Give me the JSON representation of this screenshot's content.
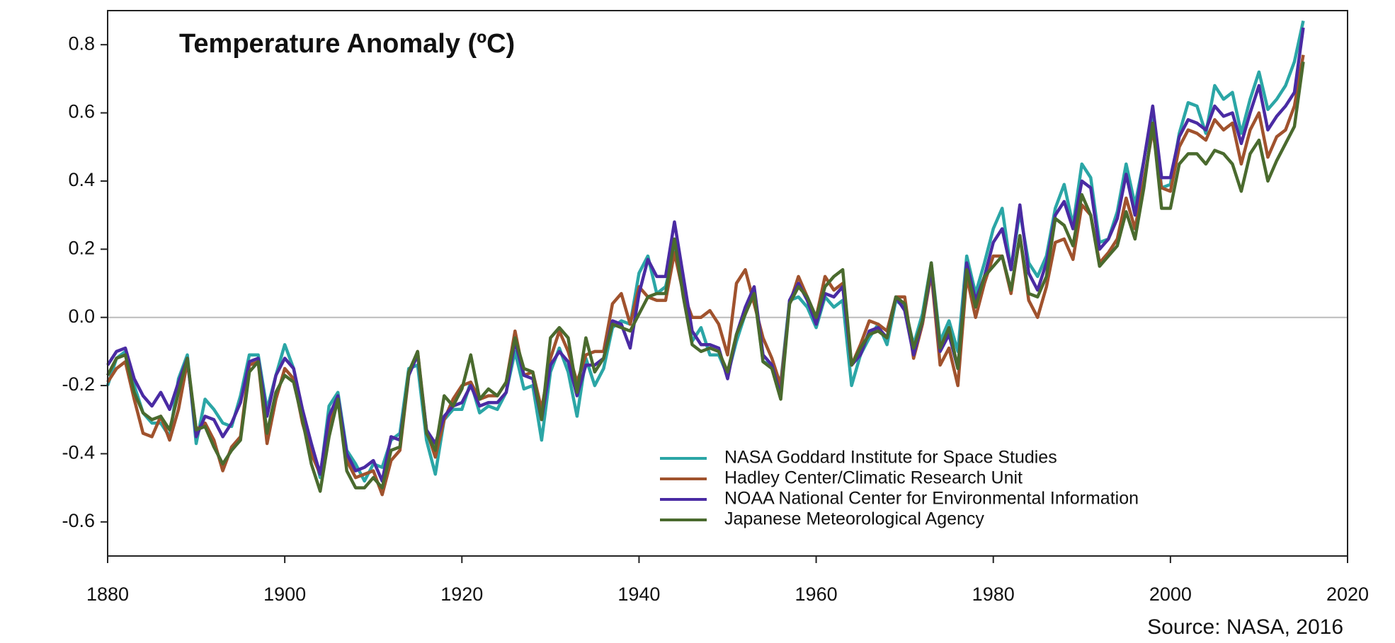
{
  "chart_data": {
    "type": "line",
    "title": "Temperature Anomaly (ºC)",
    "source": "Source: NASA, 2016",
    "x": [
      1880,
      1881,
      1882,
      1883,
      1884,
      1885,
      1886,
      1887,
      1888,
      1889,
      1890,
      1891,
      1892,
      1893,
      1894,
      1895,
      1896,
      1897,
      1898,
      1899,
      1900,
      1901,
      1902,
      1903,
      1904,
      1905,
      1906,
      1907,
      1908,
      1909,
      1910,
      1911,
      1912,
      1913,
      1914,
      1915,
      1916,
      1917,
      1918,
      1919,
      1920,
      1921,
      1922,
      1923,
      1924,
      1925,
      1926,
      1927,
      1928,
      1929,
      1930,
      1931,
      1932,
      1933,
      1934,
      1935,
      1936,
      1937,
      1938,
      1939,
      1940,
      1941,
      1942,
      1943,
      1944,
      1945,
      1946,
      1947,
      1948,
      1949,
      1950,
      1951,
      1952,
      1953,
      1954,
      1955,
      1956,
      1957,
      1958,
      1959,
      1960,
      1961,
      1962,
      1963,
      1964,
      1965,
      1966,
      1967,
      1968,
      1969,
      1970,
      1971,
      1972,
      1973,
      1974,
      1975,
      1976,
      1977,
      1978,
      1979,
      1980,
      1981,
      1982,
      1983,
      1984,
      1985,
      1986,
      1987,
      1988,
      1989,
      1990,
      1991,
      1992,
      1993,
      1994,
      1995,
      1996,
      1997,
      1998,
      1999,
      2000,
      2001,
      2002,
      2003,
      2004,
      2005,
      2006,
      2007,
      2008,
      2009,
      2010,
      2011,
      2012,
      2013,
      2014,
      2015
    ],
    "series": [
      {
        "name": "NASA Goddard Institute for Space Studies",
        "color": "#2ba6a6",
        "values": [
          -0.2,
          -0.12,
          -0.1,
          -0.2,
          -0.28,
          -0.31,
          -0.31,
          -0.35,
          -0.18,
          -0.11,
          -0.37,
          -0.24,
          -0.27,
          -0.31,
          -0.32,
          -0.23,
          -0.11,
          -0.11,
          -0.27,
          -0.17,
          -0.08,
          -0.15,
          -0.28,
          -0.37,
          -0.47,
          -0.26,
          -0.22,
          -0.39,
          -0.43,
          -0.48,
          -0.43,
          -0.44,
          -0.36,
          -0.34,
          -0.15,
          -0.14,
          -0.36,
          -0.46,
          -0.3,
          -0.27,
          -0.27,
          -0.19,
          -0.28,
          -0.26,
          -0.27,
          -0.22,
          -0.1,
          -0.21,
          -0.2,
          -0.36,
          -0.16,
          -0.09,
          -0.16,
          -0.29,
          -0.12,
          -0.2,
          -0.15,
          -0.03,
          -0.01,
          -0.02,
          0.13,
          0.18,
          0.07,
          0.09,
          0.2,
          0.09,
          -0.07,
          -0.03,
          -0.11,
          -0.11,
          -0.17,
          -0.07,
          0.01,
          0.08,
          -0.13,
          -0.14,
          -0.19,
          0.05,
          0.06,
          0.03,
          -0.03,
          0.06,
          0.03,
          0.05,
          -0.2,
          -0.11,
          -0.06,
          -0.02,
          -0.08,
          0.05,
          0.03,
          -0.08,
          0.01,
          0.16,
          -0.07,
          -0.01,
          -0.1,
          0.18,
          0.07,
          0.16,
          0.26,
          0.32,
          0.14,
          0.31,
          0.16,
          0.12,
          0.18,
          0.32,
          0.39,
          0.27,
          0.45,
          0.41,
          0.22,
          0.23,
          0.31,
          0.45,
          0.33,
          0.46,
          0.61,
          0.38,
          0.39,
          0.54,
          0.63,
          0.62,
          0.54,
          0.68,
          0.64,
          0.66,
          0.54,
          0.64,
          0.72,
          0.61,
          0.64,
          0.68,
          0.75,
          0.87
        ]
      },
      {
        "name": "Hadley Center/Climatic Research Unit",
        "color": "#a0522d",
        "values": [
          -0.19,
          -0.15,
          -0.13,
          -0.24,
          -0.34,
          -0.35,
          -0.29,
          -0.36,
          -0.27,
          -0.13,
          -0.33,
          -0.31,
          -0.36,
          -0.45,
          -0.38,
          -0.35,
          -0.14,
          -0.13,
          -0.37,
          -0.24,
          -0.15,
          -0.18,
          -0.31,
          -0.4,
          -0.46,
          -0.31,
          -0.24,
          -0.42,
          -0.47,
          -0.46,
          -0.45,
          -0.52,
          -0.42,
          -0.39,
          -0.17,
          -0.1,
          -0.33,
          -0.41,
          -0.3,
          -0.24,
          -0.2,
          -0.19,
          -0.24,
          -0.23,
          -0.23,
          -0.19,
          -0.04,
          -0.17,
          -0.16,
          -0.27,
          -0.12,
          -0.04,
          -0.1,
          -0.19,
          -0.11,
          -0.1,
          -0.1,
          0.04,
          0.07,
          -0.02,
          0.09,
          0.06,
          0.05,
          0.05,
          0.19,
          0.07,
          0.0,
          0.0,
          0.02,
          -0.02,
          -0.11,
          0.1,
          0.14,
          0.04,
          -0.06,
          -0.12,
          -0.2,
          0.04,
          0.12,
          0.06,
          0.0,
          0.12,
          0.08,
          0.1,
          -0.14,
          -0.08,
          -0.01,
          -0.02,
          -0.04,
          0.06,
          0.06,
          -0.12,
          -0.02,
          0.13,
          -0.14,
          -0.09,
          -0.2,
          0.12,
          0.0,
          0.1,
          0.18,
          0.18,
          0.07,
          0.24,
          0.05,
          0.0,
          0.09,
          0.22,
          0.23,
          0.17,
          0.33,
          0.3,
          0.16,
          0.19,
          0.23,
          0.35,
          0.26,
          0.4,
          0.55,
          0.38,
          0.37,
          0.5,
          0.55,
          0.54,
          0.52,
          0.58,
          0.55,
          0.57,
          0.45,
          0.55,
          0.6,
          0.47,
          0.53,
          0.55,
          0.62,
          0.77
        ]
      },
      {
        "name": "NOAA National Center for Environmental Information",
        "color": "#4a2ba3",
        "values": [
          -0.14,
          -0.1,
          -0.09,
          -0.18,
          -0.23,
          -0.26,
          -0.22,
          -0.27,
          -0.19,
          -0.12,
          -0.35,
          -0.29,
          -0.3,
          -0.35,
          -0.31,
          -0.25,
          -0.13,
          -0.12,
          -0.29,
          -0.17,
          -0.12,
          -0.15,
          -0.27,
          -0.37,
          -0.46,
          -0.29,
          -0.23,
          -0.4,
          -0.45,
          -0.44,
          -0.42,
          -0.48,
          -0.35,
          -0.36,
          -0.17,
          -0.11,
          -0.33,
          -0.37,
          -0.29,
          -0.26,
          -0.25,
          -0.2,
          -0.26,
          -0.25,
          -0.25,
          -0.22,
          -0.07,
          -0.17,
          -0.18,
          -0.3,
          -0.14,
          -0.1,
          -0.13,
          -0.23,
          -0.14,
          -0.14,
          -0.12,
          -0.01,
          -0.02,
          -0.09,
          0.07,
          0.17,
          0.12,
          0.12,
          0.28,
          0.12,
          -0.04,
          -0.08,
          -0.08,
          -0.09,
          -0.18,
          -0.05,
          0.03,
          0.09,
          -0.11,
          -0.14,
          -0.23,
          0.05,
          0.1,
          0.05,
          -0.02,
          0.07,
          0.06,
          0.09,
          -0.14,
          -0.11,
          -0.04,
          -0.03,
          -0.06,
          0.06,
          0.02,
          -0.11,
          -0.01,
          0.14,
          -0.1,
          -0.05,
          -0.15,
          0.16,
          0.05,
          0.12,
          0.22,
          0.26,
          0.14,
          0.33,
          0.13,
          0.08,
          0.16,
          0.3,
          0.34,
          0.26,
          0.4,
          0.38,
          0.2,
          0.23,
          0.29,
          0.42,
          0.3,
          0.46,
          0.62,
          0.41,
          0.41,
          0.53,
          0.58,
          0.57,
          0.55,
          0.62,
          0.59,
          0.6,
          0.51,
          0.6,
          0.68,
          0.55,
          0.59,
          0.62,
          0.66,
          0.85
        ]
      },
      {
        "name": "Japanese Meteorological Agency",
        "color": "#4a6a2e",
        "values": [
          -0.17,
          -0.12,
          -0.11,
          -0.22,
          -0.28,
          -0.3,
          -0.29,
          -0.33,
          -0.22,
          -0.12,
          -0.33,
          -0.32,
          -0.38,
          -0.43,
          -0.39,
          -0.36,
          -0.16,
          -0.13,
          -0.34,
          -0.22,
          -0.17,
          -0.19,
          -0.3,
          -0.43,
          -0.51,
          -0.35,
          -0.24,
          -0.45,
          -0.5,
          -0.5,
          -0.47,
          -0.5,
          -0.39,
          -0.38,
          -0.16,
          -0.1,
          -0.34,
          -0.39,
          -0.23,
          -0.26,
          -0.21,
          -0.11,
          -0.24,
          -0.21,
          -0.23,
          -0.19,
          -0.06,
          -0.15,
          -0.16,
          -0.3,
          -0.06,
          -0.03,
          -0.06,
          -0.22,
          -0.06,
          -0.16,
          -0.12,
          -0.02,
          -0.03,
          -0.04,
          0.01,
          0.06,
          0.07,
          0.07,
          0.23,
          0.06,
          -0.08,
          -0.1,
          -0.09,
          -0.1,
          -0.16,
          -0.05,
          0.01,
          0.07,
          -0.13,
          -0.15,
          -0.24,
          0.04,
          0.09,
          0.06,
          0.0,
          0.09,
          0.12,
          0.14,
          -0.14,
          -0.09,
          -0.05,
          -0.04,
          -0.06,
          0.06,
          0.04,
          -0.09,
          -0.01,
          0.16,
          -0.09,
          -0.03,
          -0.15,
          0.14,
          0.03,
          0.12,
          0.15,
          0.18,
          0.08,
          0.24,
          0.07,
          0.06,
          0.12,
          0.29,
          0.27,
          0.21,
          0.36,
          0.3,
          0.15,
          0.18,
          0.21,
          0.31,
          0.23,
          0.38,
          0.57,
          0.32,
          0.32,
          0.45,
          0.48,
          0.48,
          0.45,
          0.49,
          0.48,
          0.45,
          0.37,
          0.48,
          0.52,
          0.4,
          0.46,
          0.51,
          0.56,
          0.75
        ]
      }
    ],
    "xlim": [
      1880,
      2020
    ],
    "xticks": [
      1880,
      1900,
      1920,
      1940,
      1960,
      1980,
      2000,
      2020
    ],
    "ylim": [
      -0.7,
      0.9
    ],
    "yticks": [
      {
        "value": -0.6,
        "label": "-0.6"
      },
      {
        "value": -0.4,
        "label": "-0.4"
      },
      {
        "value": -0.2,
        "label": "-0.2"
      },
      {
        "value": 0,
        "label": "0.0"
      },
      {
        "value": 0.2,
        "label": "0.2"
      },
      {
        "value": 0.4,
        "label": "0.4"
      },
      {
        "value": 0.6,
        "label": "0.6"
      },
      {
        "value": 0.8,
        "label": "0.8"
      }
    ],
    "zero_line": true,
    "legend": "lower right"
  }
}
